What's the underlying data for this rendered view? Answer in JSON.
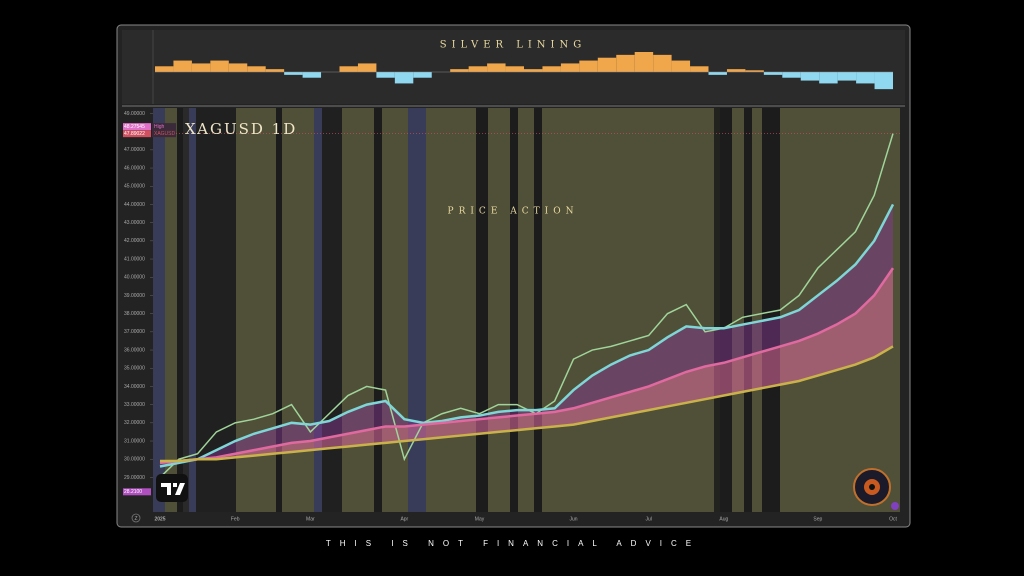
{
  "chart_data": [
    {
      "type": "oscillator",
      "title": "SILVER LINING",
      "color": "#f0a64a",
      "negative_color": "#8fd8f0",
      "values": [
        1,
        2,
        1.5,
        2,
        1.5,
        1,
        0.5,
        -0.5,
        -1,
        0,
        1,
        1.5,
        -1,
        -2,
        -1,
        0,
        0.5,
        1,
        1.5,
        1,
        0.5,
        1,
        1.5,
        2,
        2.5,
        3,
        3.5,
        3,
        2,
        1,
        -0.5,
        0.5,
        0.3,
        -0.5,
        -1,
        -1.5,
        -2,
        -1.5,
        -2,
        -3
      ]
    },
    {
      "type": "line",
      "title": "XAGUSD 1D",
      "annotation": "PRICE ACTION",
      "categories": [
        "2025",
        null,
        null,
        null,
        "Feb",
        null,
        null,
        null,
        "Mar",
        null,
        null,
        null,
        null,
        "Apr",
        null,
        null,
        null,
        "May",
        null,
        null,
        null,
        null,
        "Jun",
        null,
        null,
        null,
        "Jul",
        null,
        null,
        null,
        "Aug",
        null,
        null,
        null,
        null,
        "Sep",
        null,
        null,
        null,
        "Oct"
      ],
      "series": [
        {
          "color": "#9fd49a",
          "values": [
            29.0,
            30.0,
            30.3,
            31.5,
            32.0,
            32.2,
            32.5,
            33.0,
            31.5,
            32.5,
            33.5,
            34.0,
            33.8,
            30.0,
            32.0,
            32.5,
            32.8,
            32.5,
            33.0,
            33.0,
            32.5,
            33.2,
            35.5,
            36.0,
            36.2,
            36.5,
            36.8,
            38.0,
            38.5,
            37.0,
            37.2,
            37.8,
            38.0,
            38.2,
            39.0,
            40.5,
            41.5,
            42.5,
            44.5,
            47.9
          ]
        },
        {
          "color": "#7fd6d6",
          "values": [
            29.6,
            29.8,
            30.0,
            30.5,
            31.0,
            31.4,
            31.7,
            32.0,
            31.9,
            32.1,
            32.6,
            33.0,
            33.2,
            32.2,
            32.0,
            32.1,
            32.3,
            32.4,
            32.6,
            32.7,
            32.7,
            32.8,
            33.8,
            34.6,
            35.2,
            35.7,
            36.0,
            36.7,
            37.3,
            37.2,
            37.2,
            37.4,
            37.6,
            37.8,
            38.2,
            39.0,
            39.8,
            40.7,
            42.0,
            44.0
          ]
        },
        {
          "color": "#e06aa0",
          "values": [
            29.8,
            29.9,
            30.0,
            30.1,
            30.3,
            30.5,
            30.7,
            30.9,
            31.0,
            31.2,
            31.4,
            31.6,
            31.8,
            31.8,
            31.9,
            32.0,
            32.1,
            32.2,
            32.3,
            32.4,
            32.5,
            32.6,
            32.8,
            33.1,
            33.4,
            33.7,
            34.0,
            34.4,
            34.8,
            35.1,
            35.3,
            35.6,
            35.9,
            36.2,
            36.5,
            36.9,
            37.4,
            38.0,
            39.0,
            40.5
          ]
        },
        {
          "color": "#c9b24a",
          "values": [
            29.9,
            29.9,
            30.0,
            30.0,
            30.1,
            30.2,
            30.3,
            30.4,
            30.5,
            30.6,
            30.7,
            30.8,
            30.9,
            31.0,
            31.1,
            31.2,
            31.3,
            31.4,
            31.5,
            31.6,
            31.7,
            31.8,
            31.9,
            32.1,
            32.3,
            32.5,
            32.7,
            32.9,
            33.1,
            33.3,
            33.5,
            33.7,
            33.9,
            34.1,
            34.3,
            34.6,
            34.9,
            35.2,
            35.6,
            36.2
          ]
        }
      ],
      "ylim": [
        27.1,
        49.3
      ],
      "yticks": [
        {
          "value": 29,
          "label": "29.00000"
        },
        {
          "value": 30,
          "label": "30.00000"
        },
        {
          "value": 31,
          "label": "31.00000"
        },
        {
          "value": 32,
          "label": "32.00000"
        },
        {
          "value": 33,
          "label": "33.00000"
        },
        {
          "value": 34,
          "label": "34.00000"
        },
        {
          "value": 35,
          "label": "35.00000"
        },
        {
          "value": 36,
          "label": "36.00000"
        },
        {
          "value": 37,
          "label": "37.00000"
        },
        {
          "value": 38,
          "label": "38.00000"
        },
        {
          "value": 39,
          "label": "39.00000"
        },
        {
          "value": 40,
          "label": "40.00000"
        },
        {
          "value": 41,
          "label": "41.00000"
        },
        {
          "value": 42,
          "label": "42.00000"
        },
        {
          "value": 43,
          "label": "43.00000"
        },
        {
          "value": 44,
          "label": "44.00000"
        },
        {
          "value": 45,
          "label": "45.00000"
        },
        {
          "value": 46,
          "label": "46.00000"
        },
        {
          "value": 47,
          "label": "47.00000"
        },
        {
          "value": 49,
          "label": "49.00000"
        }
      ],
      "price_labels": [
        {
          "value": 48.27545,
          "text": "High",
          "color": "#e070c8"
        },
        {
          "value": 47.89022,
          "text": "XAGUSD",
          "color": "#d05060"
        },
        {
          "value": {
            "value": 28.21,
            "label": "28.2100"
          },
          "color": "#b050c0"
        }
      ],
      "grid": false
    }
  ],
  "footer": "THIS IS NOT FINANCIAL ADVICE",
  "scale_button": "Z"
}
